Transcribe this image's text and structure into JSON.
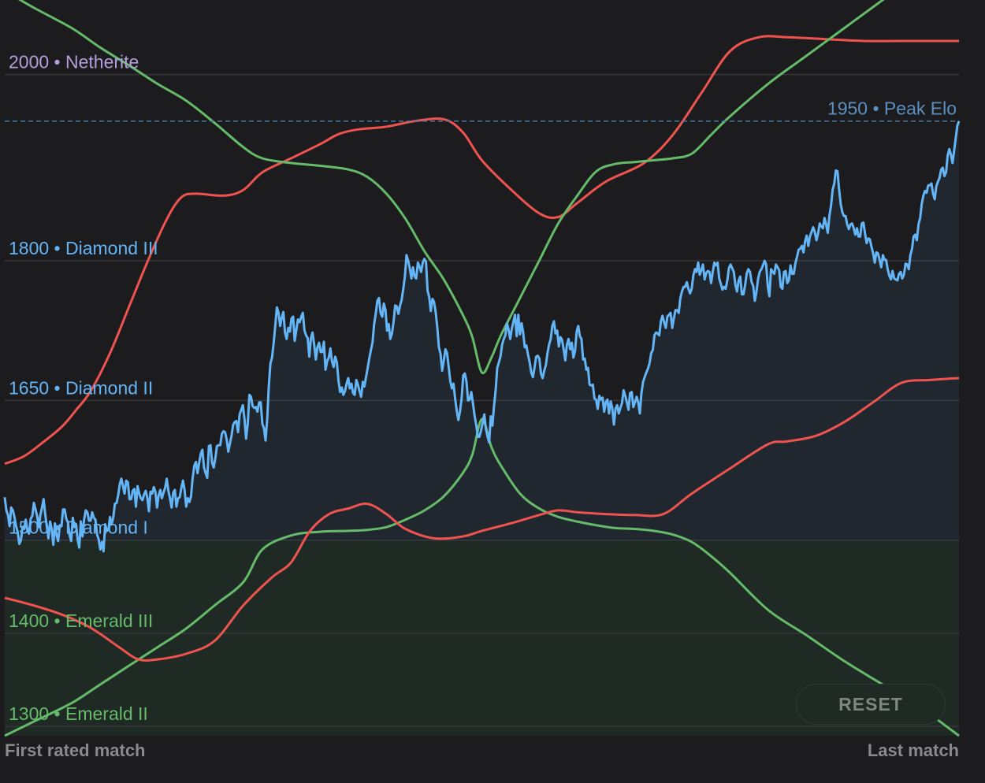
{
  "chart_data": {
    "type": "line",
    "y_range": [
      1290,
      2080
    ],
    "x_labels": {
      "start": "First rated match",
      "end": "Last match"
    },
    "rank_lines": [
      {
        "value": 2000,
        "label": "2000 • Netherite",
        "tier": "netherite"
      },
      {
        "value": 1800,
        "label": "1800 • Diamond III",
        "tier": "diamond"
      },
      {
        "value": 1650,
        "label": "1650 • Diamond II",
        "tier": "diamond"
      },
      {
        "value": 1500,
        "label": "1500 • Diamond I",
        "tier": "diamond"
      },
      {
        "value": 1400,
        "label": "1400 • Emerald III",
        "tier": "emerald"
      },
      {
        "value": 1300,
        "label": "1300 • Emerald II",
        "tier": "emerald"
      }
    ],
    "peak": {
      "value": 1950,
      "label": "1950 • Peak Elo"
    },
    "emerald_zone_max": 1500,
    "elo_series": [
      1546,
      1532,
      1527,
      1515,
      1535,
      1532,
      1525,
      1515,
      1509,
      1496,
      1500,
      1514,
      1512,
      1522,
      1510,
      1507,
      1523,
      1526,
      1540,
      1533,
      1526,
      1514,
      1527,
      1535,
      1544,
      1528,
      1514,
      1502,
      1520,
      1512,
      1495,
      1518,
      1505,
      1499,
      1516,
      1515,
      1533,
      1533,
      1523,
      1519,
      1506,
      1499,
      1524,
      1514,
      1517,
      1501,
      1492,
      1520,
      1504,
      1522,
      1532,
      1530,
      1521,
      1521,
      1530,
      1524,
      1522,
      1506,
      1501,
      1490,
      1498,
      1488,
      1517,
      1510,
      1511,
      1525,
      1517,
      1525,
      1539,
      1540,
      1548,
      1560,
      1566,
      1558,
      1550,
      1564,
      1562,
      1544,
      1544,
      1553,
      1555,
      1536,
      1558,
      1550,
      1545,
      1543,
      1549,
      1553,
      1546,
      1531,
      1552,
      1550,
      1557,
      1552,
      1535,
      1548,
      1554,
      1545,
      1551,
      1556,
      1566,
      1553,
      1545,
      1535,
      1551,
      1554,
      1536,
      1545,
      1546,
      1556,
      1564,
      1554,
      1536,
      1545,
      1541,
      1547,
      1567,
      1580,
      1584,
      1572,
      1583,
      1593,
      1597,
      1578,
      1572,
      1567,
      1601,
      1602,
      1583,
      1578,
      1588,
      1601,
      1602,
      1602,
      1614,
      1617,
      1616,
      1608,
      1595,
      1604,
      1612,
      1624,
      1627,
      1628,
      1616,
      1635,
      1640,
      1645,
      1630,
      1609,
      1625,
      1656,
      1654,
      1644,
      1642,
      1643,
      1638,
      1648,
      1648,
      1625,
      1620,
      1607,
      1630,
      1665,
      1690,
      1696,
      1712,
      1731,
      1750,
      1744,
      1730,
      1739,
      1745,
      1723,
      1716,
      1728,
      1724,
      1738,
      1740,
      1714,
      1726,
      1737,
      1734,
      1740,
      1744,
      1725,
      1720,
      1717,
      1697,
      1717,
      1723,
      1710,
      1694,
      1707,
      1712,
      1702,
      1702,
      1713,
      1683,
      1692,
      1696,
      1706,
      1692,
      1686,
      1697,
      1691,
      1672,
      1659,
      1664,
      1656,
      1660,
      1668,
      1674,
      1663,
      1668,
      1658,
      1656,
      1672,
      1667,
      1660,
      1654,
      1670,
      1665,
      1675,
      1685,
      1695,
      1704,
      1712,
      1732,
      1743,
      1757,
      1760,
      1744,
      1740,
      1754,
      1747,
      1725,
      1732,
      1716,
      1722,
      1734,
      1752,
      1751,
      1743,
      1752,
      1758,
      1770,
      1783,
      1806,
      1800,
      1792,
      1781,
      1793,
      1783,
      1781,
      1798,
      1794,
      1788,
      1798,
      1802,
      1799,
      1768,
      1761,
      1746,
      1759,
      1756,
      1745,
      1728,
      1707,
      1700,
      1682,
      1693,
      1705,
      1701,
      1686,
      1671,
      1663,
      1668,
      1652,
      1639,
      1629,
      1638,
      1652,
      1677,
      1679,
      1670,
      1650,
      1651,
      1659,
      1647,
      1634,
      1624,
      1611,
      1611,
      1618,
      1626,
      1635,
      1620,
      1611,
      1605,
      1633,
      1623,
      1644,
      1661,
      1685,
      1691,
      1697,
      1710,
      1716,
      1720,
      1733,
      1726,
      1716,
      1727,
      1735,
      1742,
      1719,
      1742,
      1721,
      1733,
      1723,
      1707,
      1709,
      1699,
      1691,
      1680,
      1675,
      1685,
      1697,
      1698,
      1695,
      1679,
      1674,
      1682,
      1688,
      1701,
      1710,
      1716,
      1730,
      1735,
      1722,
      1725,
      1708,
      1718,
      1715,
      1705,
      1693,
      1710,
      1716,
      1705,
      1712,
      1696,
      1703,
      1724,
      1730,
      1719,
      1716,
      1694,
      1695,
      1683,
      1685,
      1667,
      1666,
      1667,
      1652,
      1651,
      1641,
      1655,
      1651,
      1653,
      1638,
      1648,
      1651,
      1636,
      1649,
      1642,
      1624,
      1641,
      1645,
      1636,
      1642,
      1647,
      1661,
      1655,
      1648,
      1640,
      1658,
      1659,
      1643,
      1648,
      1654,
      1648,
      1636,
      1658,
      1670,
      1675,
      1680,
      1684,
      1690,
      1701,
      1704,
      1720,
      1723,
      1722,
      1720,
      1735,
      1741,
      1734,
      1728,
      1740,
      1742,
      1744,
      1728,
      1738,
      1747,
      1747,
      1744,
      1760,
      1767,
      1772,
      1772,
      1777,
      1770,
      1765,
      1770,
      1784,
      1791,
      1788,
      1798,
      1785,
      1790,
      1796,
      1780,
      1787,
      1789,
      1788,
      1776,
      1788,
      1798,
      1795,
      1798,
      1781,
      1775,
      1769,
      1772,
      1770,
      1779,
      1792,
      1796,
      1792,
      1788,
      1774,
      1767,
      1779,
      1783,
      1764,
      1764,
      1774,
      1787,
      1791,
      1788,
      1777,
      1773,
      1757,
      1767,
      1781,
      1788,
      1791,
      1795,
      1800,
      1796,
      1772,
      1762,
      1791,
      1788,
      1786,
      1796,
      1793,
      1790,
      1772,
      1770,
      1788,
      1789,
      1776,
      1779,
      1795,
      1786,
      1786,
      1797,
      1804,
      1812,
      1813,
      1816,
      1809,
      1821,
      1827,
      1816,
      1826,
      1831,
      1836,
      1831,
      1822,
      1829,
      1840,
      1837,
      1835,
      1846,
      1839,
      1830,
      1848,
      1859,
      1876,
      1883,
      1897,
      1896,
      1876,
      1861,
      1852,
      1848,
      1848,
      1839,
      1834,
      1839,
      1840,
      1835,
      1828,
      1835,
      1826,
      1826,
      1840,
      1841,
      1829,
      1819,
      1824,
      1823,
      1815,
      1808,
      1798,
      1809,
      1808,
      1801,
      1793,
      1806,
      1801,
      1801,
      1791,
      1784,
      1780,
      1789,
      1781,
      1780,
      1779,
      1786,
      1788,
      1781,
      1785,
      1797,
      1796,
      1791,
      1806,
      1813,
      1826,
      1828,
      1822,
      1839,
      1846,
      1861,
      1870,
      1875,
      1873,
      1881,
      1881,
      1883,
      1872,
      1866,
      1880,
      1885,
      1889,
      1898,
      1900,
      1891,
      1895,
      1913,
      1920,
      1914,
      1905,
      1918,
      1932,
      1945,
      1950
    ],
    "overlay_series": [
      {
        "color": "#ef5350",
        "points": [
          [
            0,
            1582
          ],
          [
            0.02,
            1590
          ],
          [
            0.04,
            1605
          ],
          [
            0.06,
            1622
          ],
          [
            0.075,
            1640
          ],
          [
            0.09,
            1660
          ],
          [
            0.11,
            1700
          ],
          [
            0.13,
            1750
          ],
          [
            0.15,
            1800
          ],
          [
            0.17,
            1845
          ],
          [
            0.185,
            1868
          ],
          [
            0.2,
            1872
          ],
          [
            0.23,
            1870
          ],
          [
            0.25,
            1876
          ],
          [
            0.27,
            1895
          ],
          [
            0.3,
            1910
          ],
          [
            0.33,
            1925
          ],
          [
            0.35,
            1936
          ],
          [
            0.37,
            1941
          ],
          [
            0.4,
            1944
          ],
          [
            0.43,
            1950
          ],
          [
            0.46,
            1952
          ],
          [
            0.48,
            1938
          ],
          [
            0.5,
            1908
          ],
          [
            0.53,
            1877
          ],
          [
            0.56,
            1851
          ],
          [
            0.58,
            1847
          ],
          [
            0.6,
            1862
          ],
          [
            0.63,
            1885
          ],
          [
            0.67,
            1905
          ],
          [
            0.7,
            1935
          ],
          [
            0.73,
            1980
          ],
          [
            0.76,
            2025
          ],
          [
            0.79,
            2040
          ],
          [
            0.82,
            2040
          ],
          [
            0.86,
            2038
          ],
          [
            0.9,
            2036
          ],
          [
            0.94,
            2036
          ],
          [
            0.97,
            2036
          ],
          [
            1,
            2036
          ]
        ]
      },
      {
        "color": "#66bb6a",
        "points": [
          [
            0,
            2090
          ],
          [
            0.03,
            2072
          ],
          [
            0.07,
            2050
          ],
          [
            0.1,
            2029
          ],
          [
            0.13,
            2010
          ],
          [
            0.16,
            1990
          ],
          [
            0.19,
            1972
          ],
          [
            0.22,
            1948
          ],
          [
            0.25,
            1922
          ],
          [
            0.27,
            1910
          ],
          [
            0.3,
            1905
          ],
          [
            0.33,
            1902
          ],
          [
            0.36,
            1898
          ],
          [
            0.38,
            1890
          ],
          [
            0.4,
            1872
          ],
          [
            0.42,
            1845
          ],
          [
            0.44,
            1810
          ],
          [
            0.46,
            1780
          ],
          [
            0.48,
            1742
          ],
          [
            0.49,
            1718
          ],
          [
            0.5,
            1680
          ],
          [
            0.51,
            1696
          ],
          [
            0.52,
            1720
          ],
          [
            0.54,
            1760
          ],
          [
            0.56,
            1800
          ],
          [
            0.58,
            1840
          ],
          [
            0.6,
            1870
          ],
          [
            0.62,
            1896
          ],
          [
            0.64,
            1904
          ],
          [
            0.66,
            1906
          ],
          [
            0.68,
            1908
          ],
          [
            0.7,
            1910
          ],
          [
            0.72,
            1915
          ],
          [
            0.74,
            1935
          ],
          [
            0.76,
            1955
          ],
          [
            0.8,
            1990
          ],
          [
            0.84,
            2020
          ],
          [
            0.88,
            2050
          ],
          [
            0.92,
            2080
          ],
          [
            0.96,
            2110
          ],
          [
            1,
            2140
          ]
        ]
      },
      {
        "color": "#66bb6a",
        "points": [
          [
            0,
            1290
          ],
          [
            0.03,
            1305
          ],
          [
            0.07,
            1325
          ],
          [
            0.1,
            1345
          ],
          [
            0.13,
            1365
          ],
          [
            0.16,
            1385
          ],
          [
            0.19,
            1405
          ],
          [
            0.22,
            1430
          ],
          [
            0.25,
            1455
          ],
          [
            0.27,
            1490
          ],
          [
            0.3,
            1505
          ],
          [
            0.33,
            1509
          ],
          [
            0.36,
            1510
          ],
          [
            0.38,
            1511
          ],
          [
            0.4,
            1514
          ],
          [
            0.42,
            1522
          ],
          [
            0.44,
            1532
          ],
          [
            0.46,
            1547
          ],
          [
            0.48,
            1572
          ],
          [
            0.49,
            1592
          ],
          [
            0.5,
            1630
          ],
          [
            0.51,
            1600
          ],
          [
            0.52,
            1580
          ],
          [
            0.54,
            1550
          ],
          [
            0.56,
            1534
          ],
          [
            0.58,
            1525
          ],
          [
            0.6,
            1520
          ],
          [
            0.62,
            1516
          ],
          [
            0.64,
            1513
          ],
          [
            0.66,
            1512
          ],
          [
            0.68,
            1510
          ],
          [
            0.7,
            1506
          ],
          [
            0.72,
            1498
          ],
          [
            0.74,
            1483
          ],
          [
            0.76,
            1465
          ],
          [
            0.8,
            1425
          ],
          [
            0.84,
            1398
          ],
          [
            0.88,
            1370
          ],
          [
            0.92,
            1345
          ],
          [
            0.96,
            1320
          ],
          [
            1,
            1290
          ]
        ]
      },
      {
        "color": "#ef5350",
        "points": [
          [
            0,
            1438
          ],
          [
            0.03,
            1430
          ],
          [
            0.06,
            1420
          ],
          [
            0.09,
            1406
          ],
          [
            0.12,
            1385
          ],
          [
            0.14,
            1372
          ],
          [
            0.16,
            1372
          ],
          [
            0.19,
            1378
          ],
          [
            0.22,
            1392
          ],
          [
            0.25,
            1430
          ],
          [
            0.28,
            1460
          ],
          [
            0.3,
            1476
          ],
          [
            0.32,
            1510
          ],
          [
            0.34,
            1528
          ],
          [
            0.36,
            1534
          ],
          [
            0.38,
            1539
          ],
          [
            0.4,
            1528
          ],
          [
            0.42,
            1512
          ],
          [
            0.45,
            1502
          ],
          [
            0.48,
            1504
          ],
          [
            0.5,
            1510
          ],
          [
            0.53,
            1518
          ],
          [
            0.56,
            1527
          ],
          [
            0.58,
            1532
          ],
          [
            0.6,
            1530
          ],
          [
            0.63,
            1528
          ],
          [
            0.66,
            1527
          ],
          [
            0.69,
            1528
          ],
          [
            0.72,
            1550
          ],
          [
            0.76,
            1577
          ],
          [
            0.8,
            1603
          ],
          [
            0.82,
            1606
          ],
          [
            0.85,
            1612
          ],
          [
            0.88,
            1627
          ],
          [
            0.91,
            1648
          ],
          [
            0.94,
            1669
          ],
          [
            0.97,
            1672
          ],
          [
            1,
            1674
          ]
        ]
      }
    ]
  },
  "tier_colors": {
    "netherite": "#b39ddb",
    "diamond": "#64b5f6",
    "emerald": "#66bb6a",
    "peak": "#5c8fbf"
  },
  "controls": {
    "reset_label": "RESET"
  }
}
